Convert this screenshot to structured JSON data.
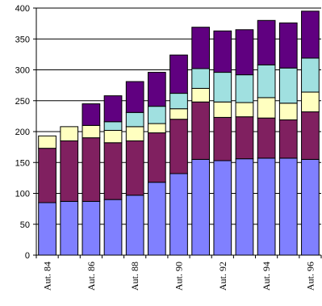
{
  "chart_data": {
    "type": "bar",
    "stacked": true,
    "title": "",
    "xlabel": "",
    "ylabel": "",
    "ylim": [
      0,
      400
    ],
    "yticks": [
      0,
      50,
      100,
      150,
      200,
      250,
      300,
      350,
      400
    ],
    "grid": "horizontal",
    "legend": "none",
    "categories": [
      "Aut. 84",
      "Aut. 85",
      "Aut. 86",
      "Aut. 87",
      "Aut. 88",
      "Aut. 89",
      "Aut. 90",
      "Aut. 91",
      "Aut. 92",
      "Aut. 93",
      "Aut. 94",
      "Aut. 95",
      "Aut. 96"
    ],
    "shown_x_labels": [
      "Aut. 84",
      "Aut. 86",
      "Aut. 88",
      "Aut. 90",
      "Aut. 92",
      "Aut. 94",
      "Aut. 96"
    ],
    "series": [
      {
        "color": "#8080ff",
        "values": [
          85,
          87,
          87,
          90,
          97,
          118,
          132,
          155,
          153,
          156,
          157,
          157,
          155
        ]
      },
      {
        "color": "#802060",
        "values": [
          88,
          98,
          103,
          92,
          88,
          80,
          88,
          93,
          70,
          68,
          65,
          62,
          77
        ]
      },
      {
        "color": "#ffffc0",
        "values": [
          20,
          23,
          20,
          20,
          23,
          15,
          17,
          22,
          25,
          23,
          33,
          27,
          32
        ]
      },
      {
        "color": "#a0e0e0",
        "values": [
          0,
          0,
          0,
          14,
          23,
          28,
          25,
          32,
          48,
          45,
          53,
          57,
          55
        ]
      },
      {
        "color": "#600080",
        "values": [
          0,
          0,
          35,
          42,
          50,
          55,
          62,
          67,
          67,
          73,
          72,
          73,
          76
        ]
      }
    ]
  }
}
